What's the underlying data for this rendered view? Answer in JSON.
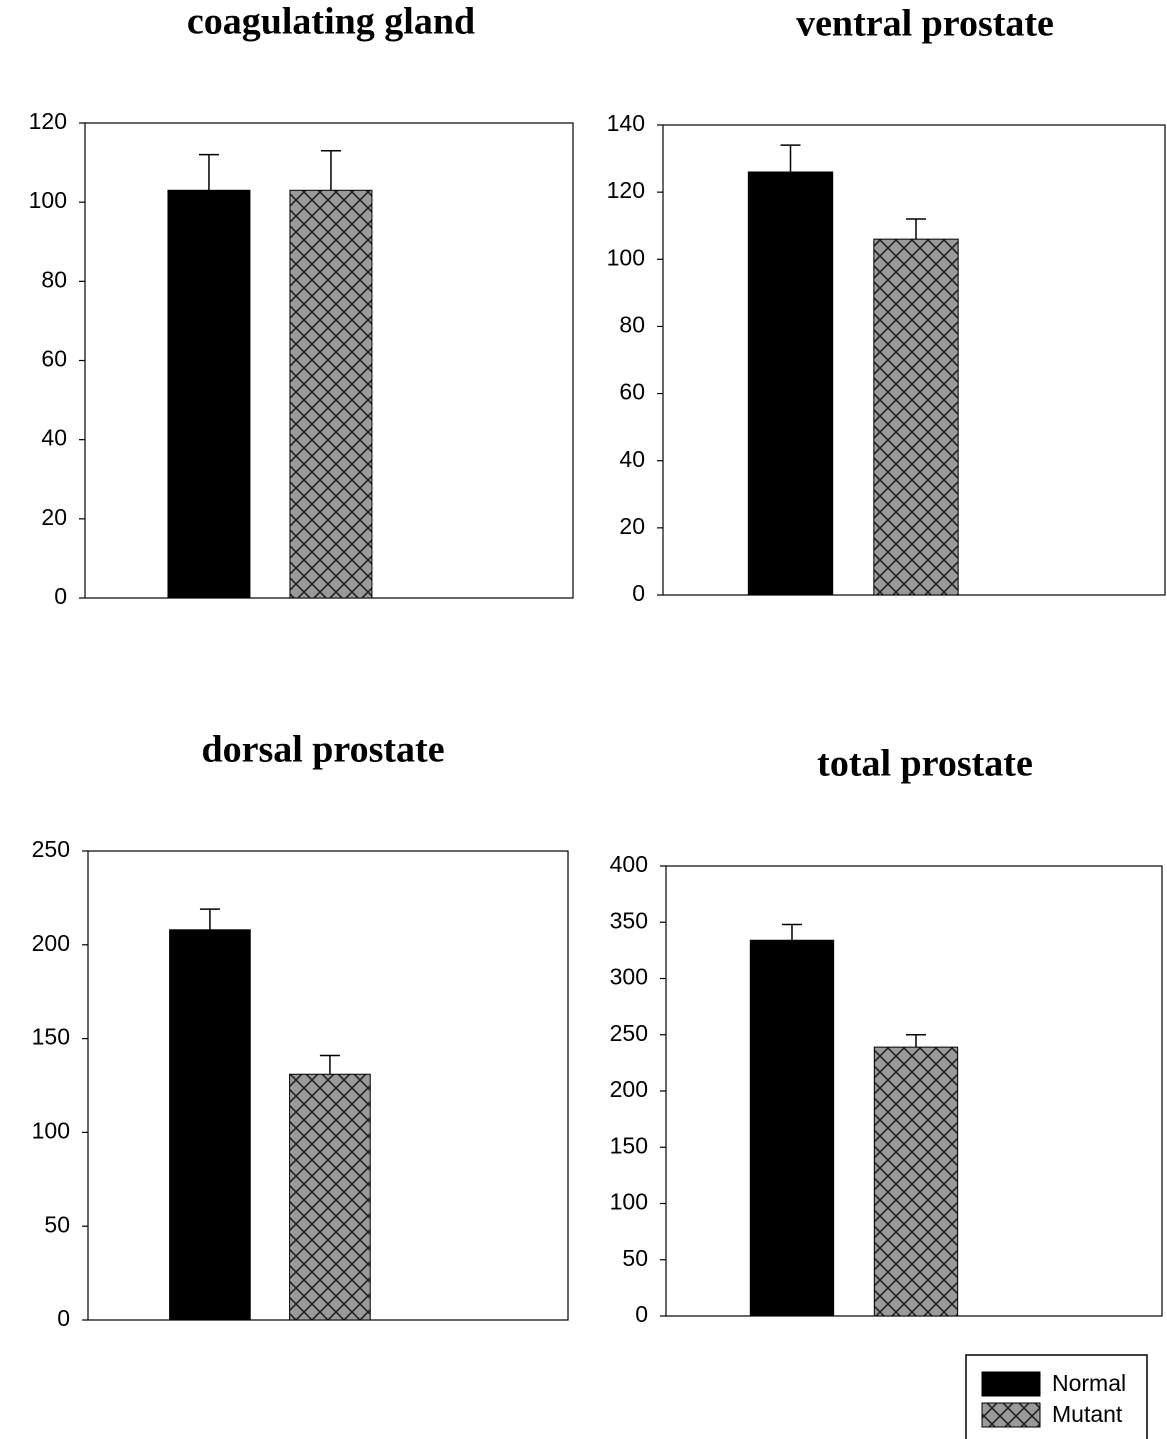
{
  "chart_data": [
    {
      "type": "bar",
      "title": "coagulating gland",
      "values": [
        103,
        103
      ],
      "errors": [
        9,
        10
      ],
      "ylim": [
        0,
        120
      ],
      "yticks": [
        0,
        20,
        40,
        60,
        80,
        100,
        120
      ]
    },
    {
      "type": "bar",
      "title": "ventral prostate",
      "values": [
        126,
        106
      ],
      "errors": [
        8,
        6
      ],
      "ylim": [
        0,
        140
      ],
      "yticks": [
        0,
        20,
        40,
        60,
        80,
        100,
        120,
        140
      ]
    },
    {
      "type": "bar",
      "title": "dorsal prostate",
      "values": [
        208,
        131
      ],
      "errors": [
        11,
        10
      ],
      "ylim": [
        0,
        250
      ],
      "yticks": [
        0,
        50,
        100,
        150,
        200,
        250
      ]
    },
    {
      "type": "bar",
      "title": "total prostate",
      "values": [
        334,
        239
      ],
      "errors": [
        14,
        11
      ],
      "ylim": [
        0,
        400
      ],
      "yticks": [
        0,
        50,
        100,
        150,
        200,
        250,
        300,
        350,
        400
      ]
    }
  ],
  "legend": {
    "loc": "lower right",
    "items": [
      {
        "name": "Normal",
        "color": "#000000"
      },
      {
        "name": "Mutant",
        "color": "#9a9a9a",
        "hatch": "cross"
      }
    ]
  }
}
